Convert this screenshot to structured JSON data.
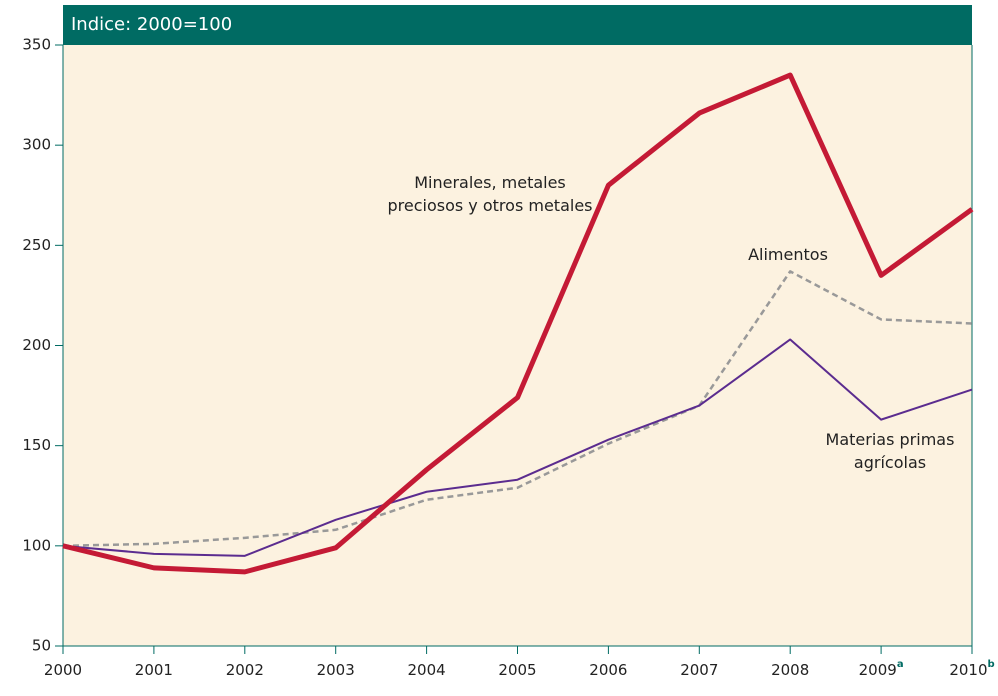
{
  "chart_data": {
    "type": "line",
    "title": "Indice: 2000=100",
    "categories": [
      "2000",
      "2001",
      "2002",
      "2003",
      "2004",
      "2005",
      "2006",
      "2007",
      "2008",
      "2009",
      "2010"
    ],
    "category_marks": [
      null,
      null,
      null,
      null,
      null,
      null,
      null,
      null,
      null,
      "a",
      "b"
    ],
    "series": [
      {
        "name": "Alimentos",
        "color": "#999999",
        "dashed": true,
        "values": [
          100,
          101,
          104,
          108,
          123,
          129,
          151,
          170,
          237,
          213,
          211
        ]
      },
      {
        "name": "Materias primas agrícolas",
        "color": "#5b2c8f",
        "dashed": false,
        "values": [
          100,
          96,
          95,
          113,
          127,
          133,
          153,
          170,
          203,
          163,
          178
        ]
      },
      {
        "name": "Minerales, metales preciosos y otros metales",
        "color": "#c41a35",
        "dashed": false,
        "values": [
          100,
          89,
          87,
          99,
          138,
          174,
          280,
          316,
          335,
          235,
          268
        ]
      }
    ],
    "ylim": [
      50,
      350
    ],
    "yticks": [
      50,
      100,
      150,
      200,
      250,
      300,
      350
    ],
    "plot_background": "#fcf2e0",
    "header_color": "#006b63"
  }
}
